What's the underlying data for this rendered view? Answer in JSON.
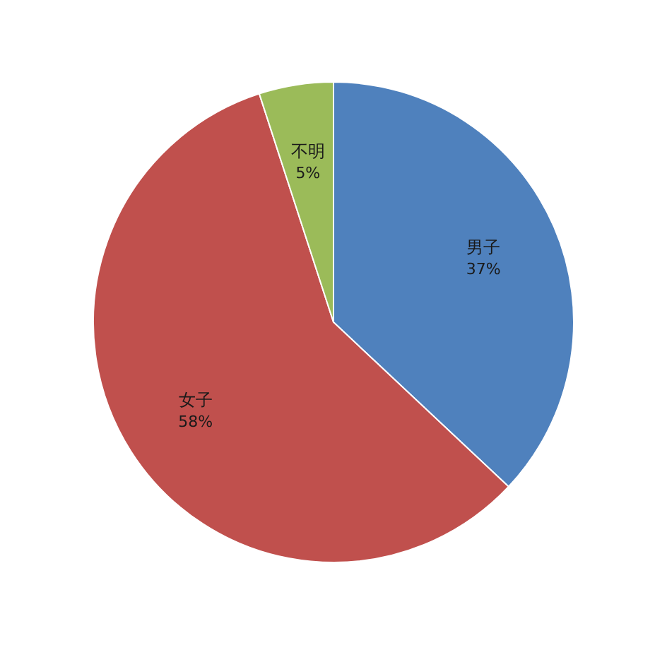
{
  "chart_data": {
    "type": "pie",
    "categories": [
      "男子",
      "女子",
      "不明"
    ],
    "values": [
      37,
      58,
      5
    ],
    "colors": [
      "#4f81bd",
      "#c0504d",
      "#9bbb59"
    ],
    "value_labels": [
      "37%",
      "58%",
      "5%"
    ]
  }
}
